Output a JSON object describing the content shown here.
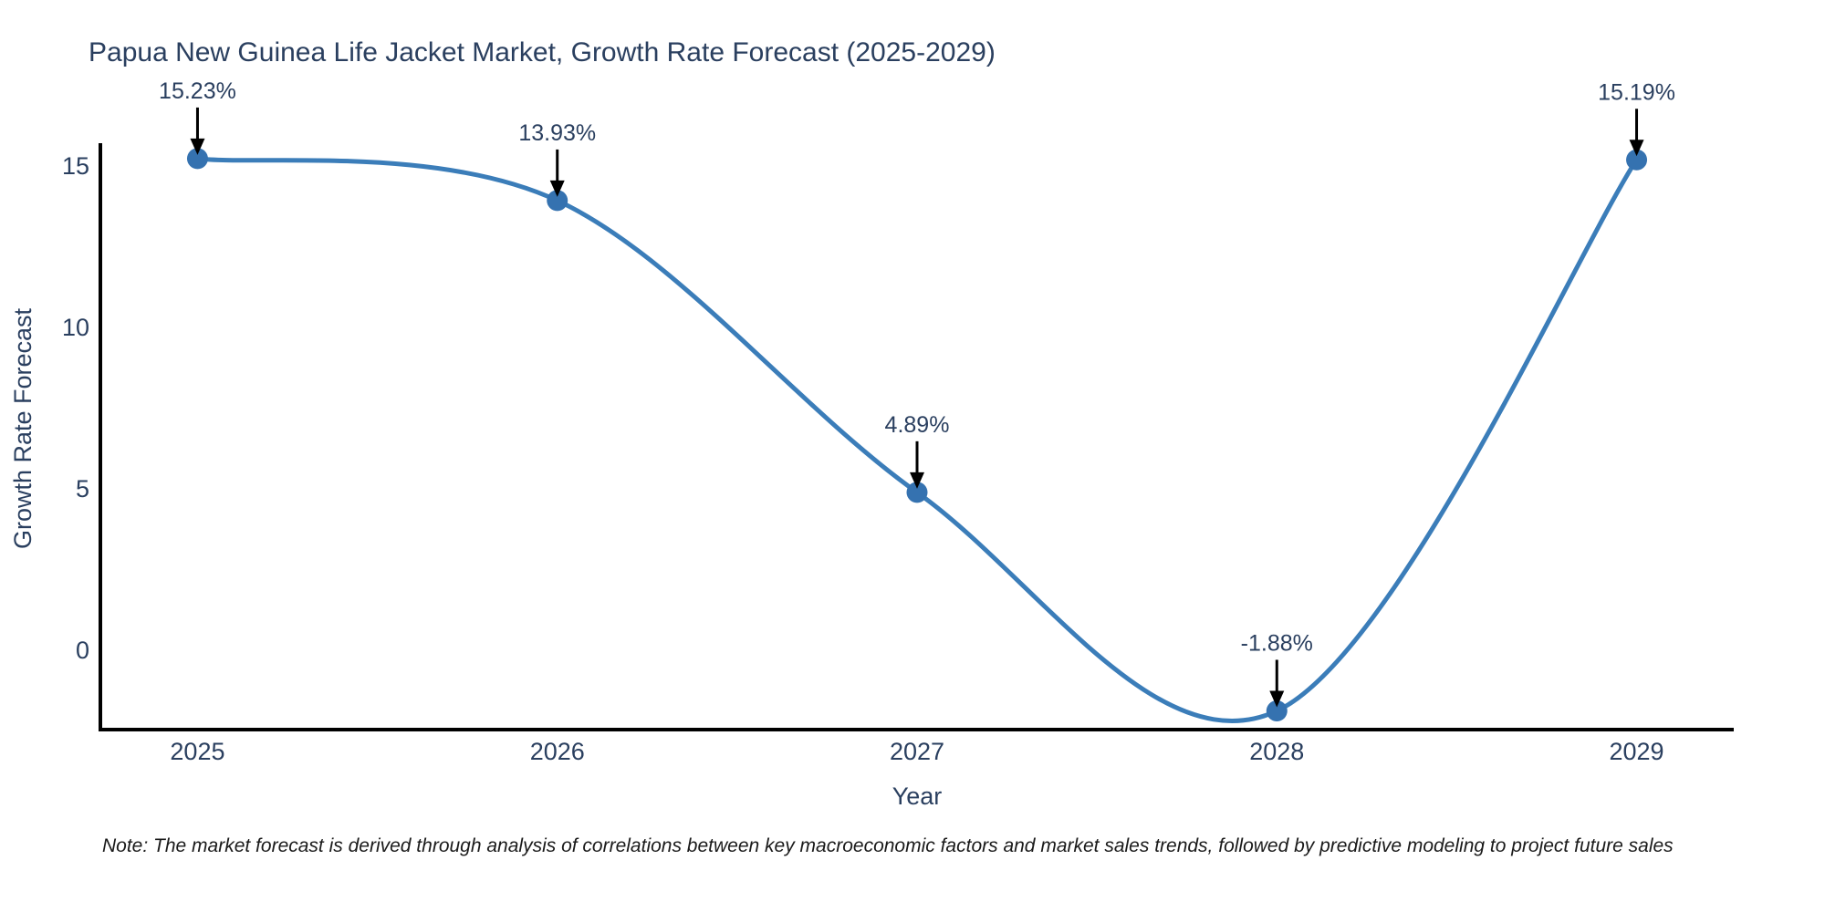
{
  "chart_data": {
    "type": "line",
    "title": "Papua New Guinea Life Jacket Market, Growth Rate Forecast (2025-2029)",
    "xlabel": "Year",
    "ylabel": "Growth Rate Forecast",
    "x": [
      2025,
      2026,
      2027,
      2028,
      2029
    ],
    "values": [
      15.23,
      13.93,
      4.89,
      -1.88,
      15.19
    ],
    "point_labels": [
      "15.23%",
      "13.93%",
      "4.89%",
      "-1.88%",
      "15.19%"
    ],
    "xticks": [
      2025,
      2026,
      2027,
      2028,
      2029
    ],
    "xtick_labels": [
      "2025",
      "2026",
      "2027",
      "2028",
      "2029"
    ],
    "yticks": [
      0,
      5,
      10,
      15
    ],
    "ytick_labels": [
      "0",
      "5",
      "10",
      "15"
    ],
    "xlim": [
      2024.73,
      2029.27
    ],
    "ylim": [
      -2.46,
      16.47
    ],
    "grid": false,
    "legend": "none",
    "line_shape": "spline",
    "line_color": "#3b7db9",
    "marker_color": "#3572b0",
    "arrow_color": "#000000",
    "axis_color": "#000000",
    "text_color": "#2a3f5f",
    "note": "Note: The market forecast is derived through analysis of correlations between key macroeconomic factors and market sales trends, followed by predictive modeling to project future sales"
  }
}
